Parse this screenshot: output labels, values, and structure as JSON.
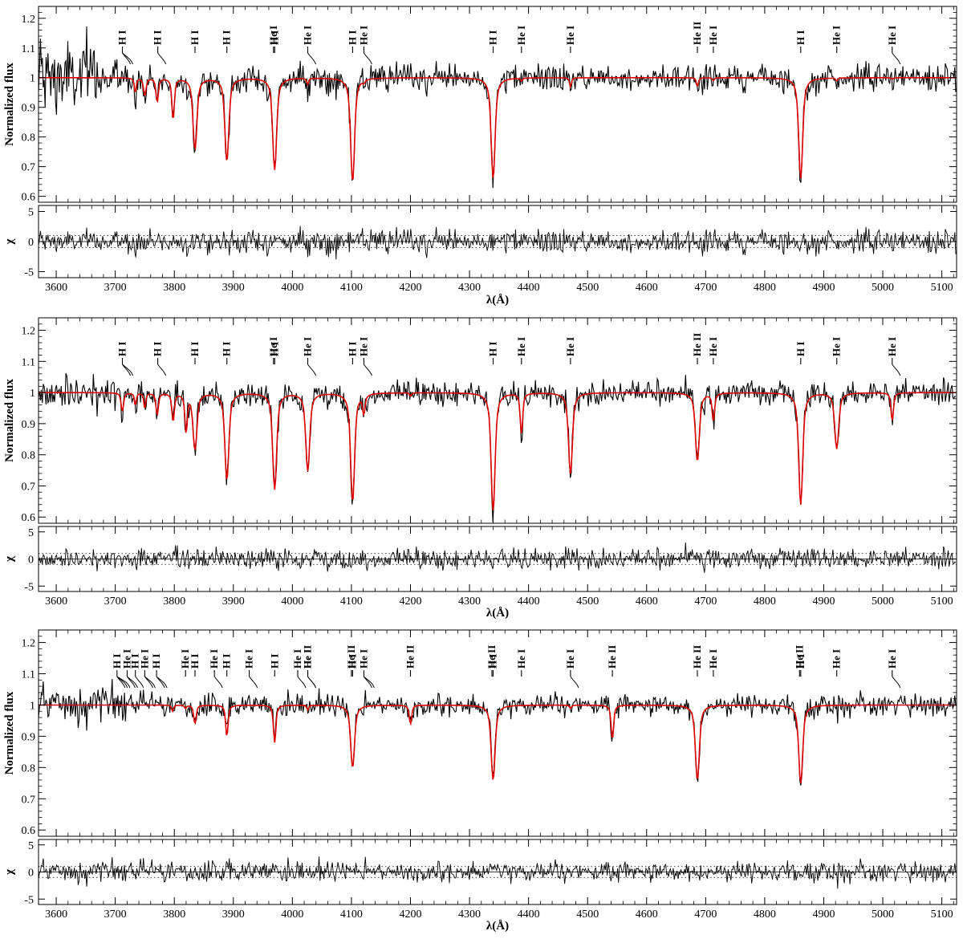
{
  "chart_data": [
    {
      "type": "line",
      "panel": 1,
      "xlabel": "λ(Å)",
      "ylabel": "Normalized flux",
      "residual_ylabel": "χ",
      "xlim": [
        3570,
        5125
      ],
      "ylim": [
        0.58,
        1.24
      ],
      "residual_ylim": [
        -6,
        6
      ],
      "x_ticks": [
        "3600",
        "3700",
        "3800",
        "3900",
        "4000",
        "4100",
        "4200",
        "4300",
        "4400",
        "4500",
        "4600",
        "4700",
        "4800",
        "4900",
        "5000",
        "5100"
      ],
      "y_ticks": [
        "0.6",
        "0.7",
        "0.8",
        "0.9",
        "1",
        "1.1",
        "1.2"
      ],
      "residual_ticks": [
        "5",
        "0",
        "-5"
      ],
      "series": [
        {
          "role": "observed",
          "color": "#000000",
          "masked_color": "#aaaaaa"
        },
        {
          "role": "model",
          "color": "#e00000"
        }
      ],
      "line_ids": [
        {
          "x": 3712,
          "label": "H I",
          "group": 2
        },
        {
          "x": 3772,
          "label": "H I",
          "group": 1
        },
        {
          "x": 3835,
          "label": "H I"
        },
        {
          "x": 3889,
          "label": "H I"
        },
        {
          "x": 3968,
          "label": "He I"
        },
        {
          "x": 3970,
          "label": "H I"
        },
        {
          "x": 4026,
          "label": "He I",
          "group": 1
        },
        {
          "x": 4102,
          "label": "H I"
        },
        {
          "x": 4121,
          "label": "He I",
          "group": 1
        },
        {
          "x": 4340,
          "label": "H I"
        },
        {
          "x": 4388,
          "label": "He I"
        },
        {
          "x": 4471,
          "label": "He I"
        },
        {
          "x": 4686,
          "label": "He II"
        },
        {
          "x": 4713,
          "label": "He I"
        },
        {
          "x": 4861,
          "label": "H I"
        },
        {
          "x": 4922,
          "label": "He I"
        },
        {
          "x": 5016,
          "label": "He I",
          "group": 1
        }
      ],
      "absorption_lines": [
        {
          "x": 3734,
          "depth": 0.05
        },
        {
          "x": 3750,
          "depth": 0.06
        },
        {
          "x": 3771,
          "depth": 0.08
        },
        {
          "x": 3798,
          "depth": 0.14
        },
        {
          "x": 3835,
          "depth": 0.24
        },
        {
          "x": 3889,
          "depth": 0.28
        },
        {
          "x": 3970,
          "depth": 0.31
        },
        {
          "x": 4026,
          "depth": 0.02
        },
        {
          "x": 4102,
          "depth": 0.35
        },
        {
          "x": 4121,
          "depth": 0.01
        },
        {
          "x": 4340,
          "depth": 0.34
        },
        {
          "x": 4388,
          "depth": 0.01
        },
        {
          "x": 4471,
          "depth": 0.03
        },
        {
          "x": 4686,
          "depth": 0.03
        },
        {
          "x": 4713,
          "depth": 0.01
        },
        {
          "x": 4861,
          "depth": 0.34
        },
        {
          "x": 4922,
          "depth": 0.01
        },
        {
          "x": 5016,
          "depth": 0.005
        }
      ],
      "noise_sigma": 0.022
    },
    {
      "type": "line",
      "panel": 2,
      "xlabel": "λ(Å)",
      "ylabel": "Normalized flux",
      "residual_ylabel": "χ",
      "xlim": [
        3570,
        5125
      ],
      "ylim": [
        0.58,
        1.24
      ],
      "residual_ylim": [
        -6,
        6
      ],
      "x_ticks": [
        "3600",
        "3700",
        "3800",
        "3900",
        "4000",
        "4100",
        "4200",
        "4300",
        "4400",
        "4500",
        "4600",
        "4700",
        "4800",
        "4900",
        "5000",
        "5100"
      ],
      "y_ticks": [
        "0.6",
        "0.7",
        "0.8",
        "0.9",
        "1",
        "1.1",
        "1.2"
      ],
      "residual_ticks": [
        "5",
        "0",
        "-5"
      ],
      "series": [
        {
          "role": "observed",
          "color": "#000000",
          "masked_color": "#aaaaaa"
        },
        {
          "role": "model",
          "color": "#e00000"
        }
      ],
      "line_ids": [
        {
          "x": 3712,
          "label": "H I",
          "group": 2
        },
        {
          "x": 3772,
          "label": "H I",
          "group": 1
        },
        {
          "x": 3835,
          "label": "H I"
        },
        {
          "x": 3889,
          "label": "H I"
        },
        {
          "x": 3968,
          "label": "He I"
        },
        {
          "x": 3970,
          "label": "H I"
        },
        {
          "x": 4026,
          "label": "He I",
          "group": 1
        },
        {
          "x": 4102,
          "label": "H I"
        },
        {
          "x": 4121,
          "label": "He I",
          "group": 1
        },
        {
          "x": 4340,
          "label": "H I"
        },
        {
          "x": 4388,
          "label": "He I"
        },
        {
          "x": 4471,
          "label": "He I"
        },
        {
          "x": 4686,
          "label": "He II"
        },
        {
          "x": 4713,
          "label": "He I"
        },
        {
          "x": 4861,
          "label": "H I"
        },
        {
          "x": 4922,
          "label": "He I"
        },
        {
          "x": 5016,
          "label": "He I",
          "group": 1
        }
      ],
      "absorption_lines": [
        {
          "x": 3712,
          "depth": 0.06
        },
        {
          "x": 3734,
          "depth": 0.04
        },
        {
          "x": 3750,
          "depth": 0.05
        },
        {
          "x": 3771,
          "depth": 0.07
        },
        {
          "x": 3798,
          "depth": 0.09
        },
        {
          "x": 3820,
          "depth": 0.12
        },
        {
          "x": 3835,
          "depth": 0.18
        },
        {
          "x": 3889,
          "depth": 0.28
        },
        {
          "x": 3970,
          "depth": 0.31
        },
        {
          "x": 4026,
          "depth": 0.25
        },
        {
          "x": 4102,
          "depth": 0.35
        },
        {
          "x": 4121,
          "depth": 0.06
        },
        {
          "x": 4200,
          "depth": 0.01
        },
        {
          "x": 4340,
          "depth": 0.38
        },
        {
          "x": 4388,
          "depth": 0.13
        },
        {
          "x": 4471,
          "depth": 0.26
        },
        {
          "x": 4686,
          "depth": 0.22
        },
        {
          "x": 4713,
          "depth": 0.09
        },
        {
          "x": 4861,
          "depth": 0.36
        },
        {
          "x": 4922,
          "depth": 0.18
        },
        {
          "x": 5016,
          "depth": 0.09
        }
      ],
      "noise_sigma": 0.02
    },
    {
      "type": "line",
      "panel": 3,
      "xlabel": "λ(Å)",
      "ylabel": "Normalized flux",
      "residual_ylabel": "χ",
      "xlim": [
        3570,
        5125
      ],
      "ylim": [
        0.58,
        1.24
      ],
      "residual_ylim": [
        -6,
        6
      ],
      "x_ticks": [
        "3600",
        "3700",
        "3800",
        "3900",
        "4000",
        "4100",
        "4200",
        "4300",
        "4400",
        "4500",
        "4600",
        "4700",
        "4800",
        "4900",
        "5000",
        "5100"
      ],
      "y_ticks": [
        "0.6",
        "0.7",
        "0.8",
        "0.9",
        "1",
        "1.1",
        "1.2"
      ],
      "residual_ticks": [
        "5",
        "0",
        "-5"
      ],
      "series": [
        {
          "role": "observed",
          "color": "#000000",
          "masked_color": "#aaaaaa"
        },
        {
          "role": "model",
          "color": "#e00000"
        }
      ],
      "line_ids": [
        {
          "x": 3703,
          "label": "H I",
          "group": 3
        },
        {
          "x": 3720,
          "label": "He I",
          "group": 2
        },
        {
          "x": 3734,
          "label": "H I",
          "group": 1
        },
        {
          "x": 3750,
          "label": "He I",
          "group": 2
        },
        {
          "x": 3770,
          "label": "H I",
          "group": 2
        },
        {
          "x": 3819,
          "label": "He I"
        },
        {
          "x": 3835,
          "label": "H I"
        },
        {
          "x": 3868,
          "label": "He I",
          "group": 1
        },
        {
          "x": 3889,
          "label": "H I"
        },
        {
          "x": 3927,
          "label": "He I",
          "group": 1
        },
        {
          "x": 3970,
          "label": "H I"
        },
        {
          "x": 4026,
          "label": "He I",
          "group": 1
        },
        {
          "x": 4026,
          "label": "He II",
          "group": 1
        },
        {
          "x": 4009,
          "label": "He I",
          "group": 1
        },
        {
          "x": 4100,
          "label": "He II"
        },
        {
          "x": 4102,
          "label": "H I"
        },
        {
          "x": 4121,
          "label": "He I",
          "group": 2
        },
        {
          "x": 4200,
          "label": "He II"
        },
        {
          "x": 4338,
          "label": "He II"
        },
        {
          "x": 4340,
          "label": "H I"
        },
        {
          "x": 4388,
          "label": "He I"
        },
        {
          "x": 4471,
          "label": "He I",
          "group": 1
        },
        {
          "x": 4542,
          "label": "He II"
        },
        {
          "x": 4686,
          "label": "He II"
        },
        {
          "x": 4713,
          "label": "He I"
        },
        {
          "x": 4859,
          "label": "He II"
        },
        {
          "x": 4861,
          "label": "H I"
        },
        {
          "x": 4922,
          "label": "He I"
        },
        {
          "x": 5016,
          "label": "He I",
          "group": 1
        }
      ],
      "absorption_lines": [
        {
          "x": 3797,
          "depth": 0.02
        },
        {
          "x": 3819,
          "depth": 0.01
        },
        {
          "x": 3835,
          "depth": 0.06
        },
        {
          "x": 3889,
          "depth": 0.1
        },
        {
          "x": 3970,
          "depth": 0.12
        },
        {
          "x": 4026,
          "depth": 0.015
        },
        {
          "x": 4102,
          "depth": 0.2
        },
        {
          "x": 4200,
          "depth": 0.06
        },
        {
          "x": 4340,
          "depth": 0.24
        },
        {
          "x": 4471,
          "depth": 0.01
        },
        {
          "x": 4542,
          "depth": 0.11
        },
        {
          "x": 4686,
          "depth": 0.24
        },
        {
          "x": 4861,
          "depth": 0.25
        }
      ],
      "noise_sigma": 0.018
    }
  ]
}
